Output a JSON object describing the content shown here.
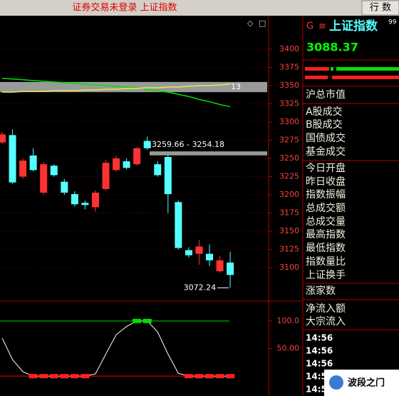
{
  "header": {
    "title": "证券交易未登录 上证指数",
    "button": "行 数"
  },
  "chart_data": [
    {
      "type": "candlestick",
      "open": [
        3272,
        3282,
        3225,
        3254,
        3203,
        3240,
        3218,
        3201,
        3189,
        3183,
        3208,
        3234,
        3246,
        3242,
        3274,
        3242,
        3252,
        3190,
        3124,
        3119,
        3119,
        3095,
        3107
      ],
      "high": [
        3286,
        3290,
        3250,
        3264,
        3245,
        3242,
        3222,
        3205,
        3192,
        3206,
        3248,
        3254,
        3250,
        3266,
        3280,
        3246,
        3255,
        3192,
        3128,
        3138,
        3132,
        3116,
        3122
      ],
      "low": [
        3270,
        3215,
        3222,
        3232,
        3200,
        3225,
        3200,
        3184,
        3180,
        3177,
        3206,
        3232,
        3235,
        3240,
        3262,
        3225,
        3175,
        3125,
        3114,
        3104,
        3102,
        3093,
        3072.24
      ],
      "close": [
        3283,
        3217,
        3247,
        3234,
        3242,
        3227,
        3203,
        3187,
        3186,
        3203,
        3244,
        3250,
        3237,
        3264,
        3264,
        3227,
        3201,
        3127,
        3117,
        3129,
        3110,
        3110,
        3090
      ],
      "up_color": "#ff3232",
      "down_color": "#54ffff",
      "ylim": [
        3056,
        3446
      ],
      "yticks": [
        3100,
        3125,
        3150,
        3175,
        3200,
        3225,
        3250,
        3275,
        3300,
        3325,
        3350,
        3375,
        3400
      ],
      "grid": true,
      "lines": [
        {
          "color": "#00e000",
          "values": [
            3360,
            3359,
            3358,
            3357,
            3356,
            3355,
            3354,
            3353,
            3352,
            3351,
            3350,
            3349,
            3348,
            3347,
            3345,
            3343,
            3341,
            3338,
            3335,
            3331,
            3328,
            3324,
            3321
          ]
        },
        {
          "color": "#e8e85a",
          "values": [
            3341,
            3341,
            3342,
            3342,
            3342,
            3343,
            3343,
            3343,
            3344,
            3344,
            3345,
            3345,
            3346,
            3346,
            3347,
            3347,
            3348,
            3348,
            3349,
            3350,
            3350,
            3351,
            3352
          ]
        }
      ],
      "zones": [
        {
          "label": "13",
          "range": [
            3355,
            3341
          ]
        },
        {
          "label": "3259.66 - 3254.18",
          "range": [
            3259.66,
            3254.18
          ]
        }
      ],
      "low_annotation": {
        "text": "3072.24",
        "value": 3072.24
      }
    },
    {
      "type": "line",
      "values": [
        69,
        30,
        8,
        0,
        0,
        0,
        0,
        0,
        0,
        4,
        40,
        75,
        90,
        100,
        100,
        80,
        40,
        5,
        0,
        0,
        0,
        0,
        0
      ],
      "color": "#ffffff",
      "ylim": [
        -36,
        136
      ],
      "yticks": [
        {
          "value": 100,
          "label": "100.0"
        },
        {
          "value": 50,
          "label": "50.00"
        }
      ],
      "hlines": [
        {
          "value": 100,
          "color": "#00cc00"
        },
        {
          "value": 0,
          "color": "#ff0000"
        }
      ]
    }
  ],
  "quote": {
    "flag": "G",
    "menu": "≡",
    "name": "上证指数",
    "code": "99",
    "price": 3088.37
  },
  "fields": [
    "沪总市值",
    "A股成交",
    "B股成交",
    "国债成交",
    "基金成交",
    "今日开盘",
    "昨日收盘",
    "指数振幅",
    "总成交额",
    "总成交量",
    "最高指数",
    "最低指数",
    "指数量比",
    "上证换手",
    "涨家数",
    "净流入额",
    "大宗流入"
  ],
  "times": [
    "14:56",
    "14:56",
    "14:56",
    "14:56",
    "14:56"
  ],
  "watermark": "波段之门"
}
